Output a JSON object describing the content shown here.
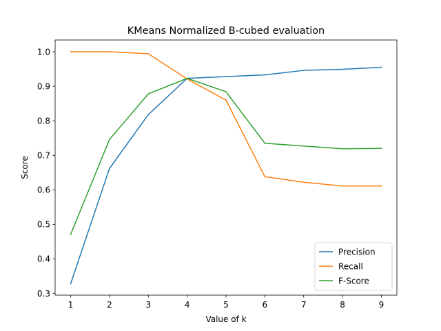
{
  "chart_data": {
    "type": "line",
    "title": "KMeans Normalized B-cubed evaluation",
    "xlabel": "Value of k",
    "ylabel": "Score",
    "x": [
      1,
      2,
      3,
      4,
      5,
      6,
      7,
      8,
      9
    ],
    "xticks": [
      "1",
      "2",
      "3",
      "4",
      "5",
      "6",
      "7",
      "8",
      "9"
    ],
    "yticks": [
      "0.3",
      "0.4",
      "0.5",
      "0.6",
      "0.7",
      "0.8",
      "0.9",
      "1.0"
    ],
    "xlim": [
      0.6,
      9.4
    ],
    "ylim": [
      0.295,
      1.034
    ],
    "grid": false,
    "legend_position": "lower-right",
    "series": [
      {
        "name": "Precision",
        "color": "#1f77b4",
        "values": [
          0.328,
          0.662,
          0.818,
          0.923,
          0.928,
          0.933,
          0.946,
          0.949,
          0.955
        ]
      },
      {
        "name": "Recall",
        "color": "#ff7f0e",
        "values": [
          1.0,
          1.0,
          0.994,
          0.921,
          0.86,
          0.638,
          0.622,
          0.611,
          0.611
        ]
      },
      {
        "name": "F-Score",
        "color": "#2ca02c",
        "values": [
          0.471,
          0.746,
          0.878,
          0.923,
          0.884,
          0.735,
          0.727,
          0.719,
          0.72
        ]
      }
    ]
  }
}
